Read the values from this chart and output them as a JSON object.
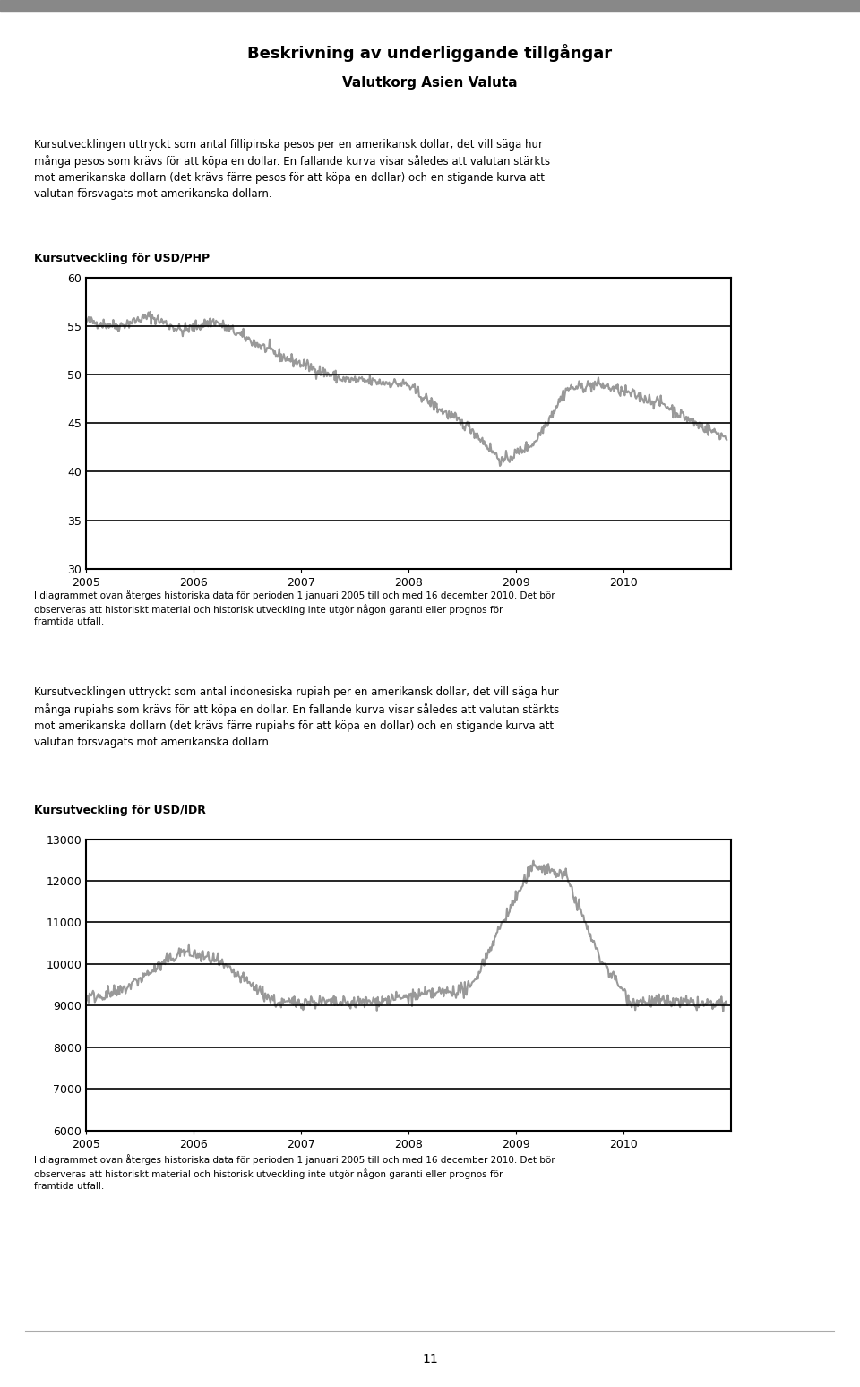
{
  "title": "Beskrivning av underliggande tillgångar",
  "subtitle": "Valutkorg Asien Valuta",
  "text1": "Kursutvecklingen uttryckt som antal fillipinska pesos per en amerikansk dollar, det vill säga hur många pesos som krävs för att köpa en dollar. En fallande kurva visar således att valutan stärkts mot amerikanska dollarn (det krävs färre pesos för att köpa en dollar) och en stigande kurva att valutan försvagats mot amerikanska dollarn.",
  "chart1_label": "Kursutveckling för USD/PHP",
  "chart1_caption": "I diagrammet ovan återges historiska data för perioden 1 januari 2005 till och med 16 december 2010. Det bör observeras att historiskt material och historisk utveckling inte utgör någon garanti eller prognos för framtida utfall.",
  "chart1_ylim": [
    30,
    60
  ],
  "chart1_yticks": [
    30,
    35,
    40,
    45,
    50,
    55,
    60
  ],
  "chart1_xticks": [
    2005,
    2006,
    2007,
    2008,
    2009,
    2010
  ],
  "text2": "Kursutvecklingen uttryckt som antal indonesiska rupiah per en amerikansk dollar, det vill säga hur många rupiahs som krävs för att köpa en dollar. En fallande kurva visar således att valutan stärkts mot amerikanska dollarn (det krävs färre rupiahs för att köpa en dollar) och en stigande kurva att valutan försvagats mot amerikanska dollarn.",
  "chart2_label": "Kursutveckling för USD/IDR",
  "chart2_caption": "I diagrammet ovan återges historiska data för perioden 1 januari 2005 till och med 16 december 2010. Det bör observeras att historiskt material och historisk utveckling inte utgör någon garanti eller prognos för framtida utfall.",
  "chart2_ylim": [
    6000,
    13000
  ],
  "chart2_yticks": [
    6000,
    7000,
    8000,
    9000,
    10000,
    11000,
    12000,
    13000
  ],
  "chart2_xticks": [
    2005,
    2006,
    2007,
    2008,
    2009,
    2010
  ],
  "line_color": "#999999",
  "line_width": 1.5,
  "page_number": "11",
  "background_color": "#ffffff",
  "top_bar_color": "#aaaaaa"
}
